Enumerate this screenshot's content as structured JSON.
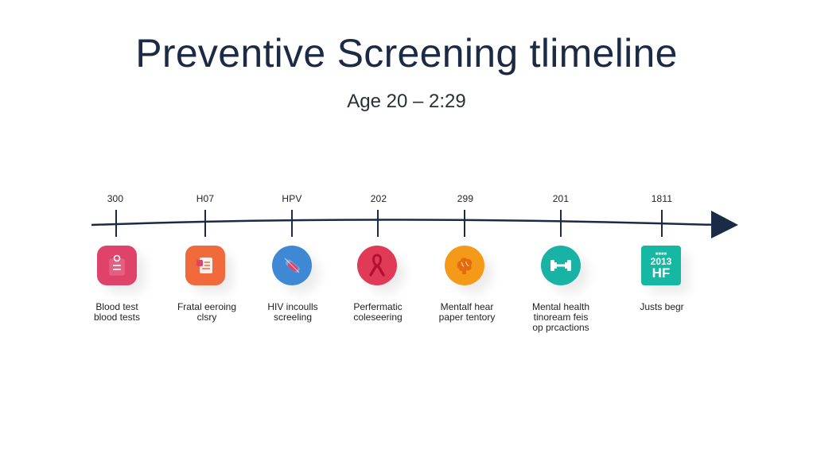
{
  "title": "Preventive Screening tlimeline",
  "subtitle": "Age 20 – 2:29",
  "colors": {
    "axis": "#1c2b45",
    "icon_1": "#e0436a",
    "icon_2": "#f06a3c",
    "icon_3": "#3f89d4",
    "icon_4": "#e03a57",
    "icon_5": "#f59a18",
    "icon_6": "#18b3a5",
    "icon_7": "#16b8a3"
  },
  "milestones": [
    {
      "label": "300",
      "icon": "clipboard-icon",
      "caption": [
        "Blood test",
        "blood tests"
      ]
    },
    {
      "label": "H07",
      "icon": "document-icon",
      "caption": [
        "Fratal eeroing",
        "clsry"
      ]
    },
    {
      "label": "HPV",
      "icon": "syringe-icon",
      "caption": [
        "HIV incoulls",
        "screeling"
      ]
    },
    {
      "label": "202",
      "icon": "ribbon-icon",
      "caption": [
        "Perfermatic",
        "coleseering"
      ]
    },
    {
      "label": "299",
      "icon": "brain-icon",
      "caption": [
        "Mentalf hear",
        "paper tentory"
      ]
    },
    {
      "label": "201",
      "icon": "dumbbell-icon",
      "caption": [
        "Mental health",
        "tinoream feis",
        "op prcactions"
      ]
    },
    {
      "label": "1811",
      "icon": "calendar-icon",
      "caption": [
        "Justs begr"
      ],
      "icon_text": [
        "2013",
        "HF"
      ]
    }
  ]
}
